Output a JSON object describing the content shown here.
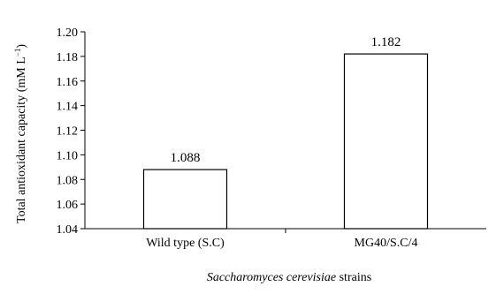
{
  "chart_data": {
    "type": "bar",
    "title": "",
    "categories": [
      "Wild type (S.C)",
      "MG40/S.C/4"
    ],
    "values": [
      1.088,
      1.182
    ],
    "data_labels": [
      "1.088",
      "1.182"
    ],
    "ylabel_main": "Total antioxidant capacity (mM L",
    "ylabel_sup": "−1",
    "ylabel_close": ")",
    "xlabel_italic": "Saccharomyces cerevisiae",
    "xlabel_rest": " strains",
    "ylim": [
      1.04,
      1.2
    ],
    "yticks": [
      1.04,
      1.06,
      1.08,
      1.1,
      1.12,
      1.14,
      1.16,
      1.18,
      1.2
    ],
    "ytick_labels": [
      "1.04",
      "1.06",
      "1.08",
      "1.10",
      "1.12",
      "1.14",
      "1.16",
      "1.18",
      "1.20"
    ],
    "grid": false,
    "legend": "none",
    "bar_fill": "#ffffff",
    "bar_stroke": "#000000"
  }
}
